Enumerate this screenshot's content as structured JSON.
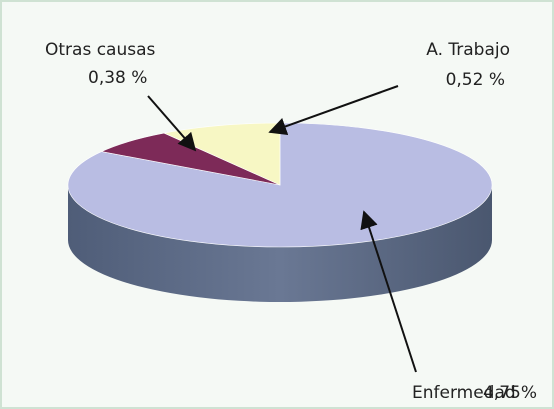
{
  "chart_data": {
    "type": "pie",
    "categories": [
      "Enfermedad",
      "Otras causas",
      "A. Trabajo"
    ],
    "values": [
      4.75,
      0.38,
      0.52
    ],
    "value_labels": [
      "4,75%",
      "0,38 %",
      "0,52 %"
    ],
    "colors": [
      "#b9bde3",
      "#7d2a58",
      "#f7f7c4"
    ]
  }
}
